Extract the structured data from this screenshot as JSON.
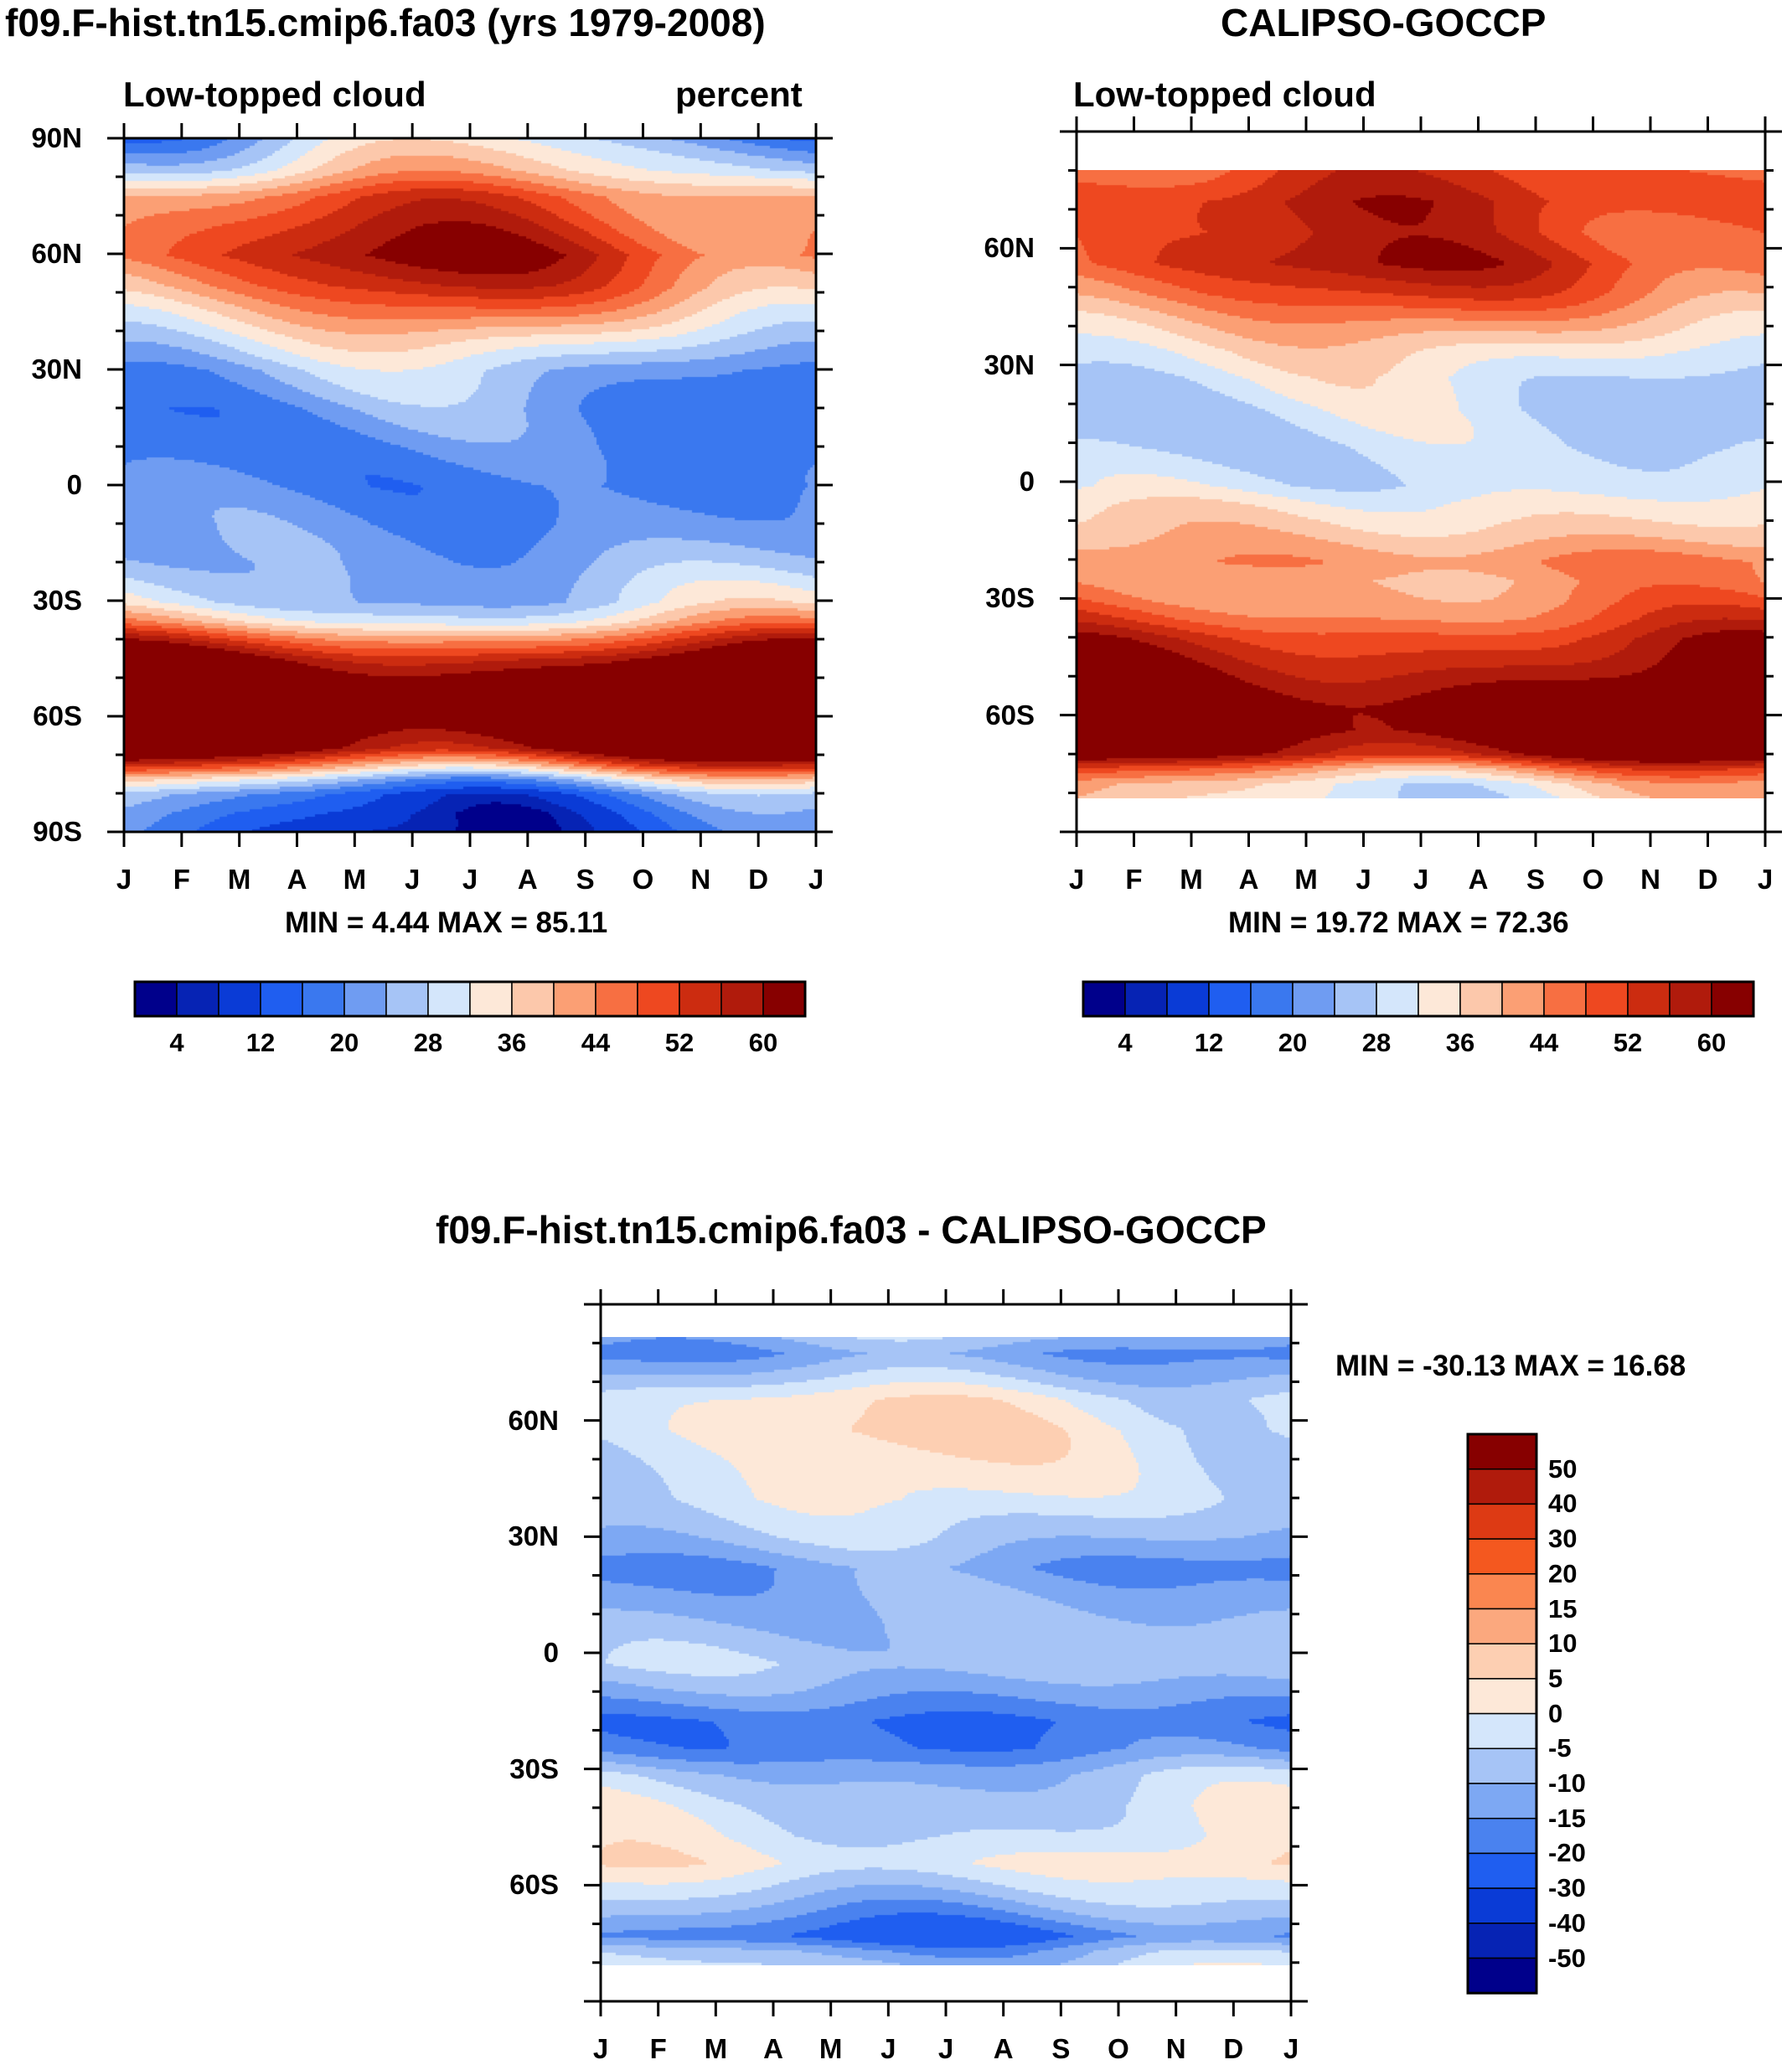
{
  "chart_data": [
    {
      "type": "contour",
      "title": "f09.F-hist.tn15.cmip6.fa03 (yrs 1979-2008)",
      "left_subtitle": "Low-topped cloud",
      "right_subtitle": "percent",
      "x_tick_labels": [
        "J",
        "F",
        "M",
        "A",
        "M",
        "J",
        "J",
        "A",
        "S",
        "O",
        "N",
        "D",
        "J"
      ],
      "y_tick_labels": [
        "90N",
        "60N",
        "30N",
        "0",
        "30S",
        "60S",
        "90S"
      ],
      "ylim": [
        -90,
        90
      ],
      "min_max_text": "MIN =   4.44 MAX =  85.11",
      "colorbar_labels": [
        "4",
        "12",
        "20",
        "28",
        "36",
        "44",
        "52",
        "60"
      ],
      "zonal_profile": [
        [
          -90,
          8
        ],
        [
          -85,
          10
        ],
        [
          -80,
          14
        ],
        [
          -76,
          26
        ],
        [
          -72,
          45
        ],
        [
          -68,
          62
        ],
        [
          -60,
          70
        ],
        [
          -52,
          68
        ],
        [
          -45,
          58
        ],
        [
          -40,
          46
        ],
        [
          -35,
          32
        ],
        [
          -30,
          24
        ],
        [
          -20,
          20
        ],
        [
          -10,
          17
        ],
        [
          0,
          15
        ],
        [
          10,
          15
        ],
        [
          20,
          16
        ],
        [
          30,
          20
        ],
        [
          38,
          28
        ],
        [
          45,
          36
        ],
        [
          52,
          44
        ],
        [
          60,
          50
        ],
        [
          68,
          46
        ],
        [
          75,
          42
        ],
        [
          82,
          30
        ],
        [
          90,
          22
        ]
      ]
    },
    {
      "type": "contour",
      "title": "CALIPSO-GOCCP",
      "left_subtitle": "Low-topped cloud",
      "x_tick_labels": [
        "J",
        "F",
        "M",
        "A",
        "M",
        "J",
        "J",
        "A",
        "S",
        "O",
        "N",
        "D",
        "J"
      ],
      "y_tick_labels": [
        "60N",
        "30N",
        "0",
        "30S",
        "60S"
      ],
      "ylim": [
        -90,
        90
      ],
      "data_lat_range": [
        -82,
        82
      ],
      "min_max_text": "MIN =  19.72 MAX =  72.36",
      "colorbar_labels": [
        "4",
        "12",
        "20",
        "28",
        "36",
        "44",
        "52",
        "60"
      ],
      "zonal_profile": [
        [
          -82,
          30
        ],
        [
          -78,
          32
        ],
        [
          -74,
          42
        ],
        [
          -70,
          58
        ],
        [
          -64,
          64
        ],
        [
          -58,
          63
        ],
        [
          -52,
          58
        ],
        [
          -46,
          54
        ],
        [
          -40,
          50
        ],
        [
          -35,
          44
        ],
        [
          -30,
          40
        ],
        [
          -25,
          38
        ],
        [
          -20,
          40
        ],
        [
          -12,
          34
        ],
        [
          -5,
          30
        ],
        [
          0,
          26
        ],
        [
          10,
          24
        ],
        [
          20,
          24
        ],
        [
          28,
          26
        ],
        [
          35,
          30
        ],
        [
          42,
          36
        ],
        [
          50,
          44
        ],
        [
          58,
          50
        ],
        [
          66,
          48
        ],
        [
          74,
          50
        ],
        [
          82,
          46
        ]
      ]
    },
    {
      "type": "contour",
      "title": "f09.F-hist.tn15.cmip6.fa03 - CALIPSO-GOCCP",
      "x_tick_labels": [
        "J",
        "F",
        "M",
        "A",
        "M",
        "J",
        "J",
        "A",
        "S",
        "O",
        "N",
        "D",
        "J"
      ],
      "y_tick_labels": [
        "60N",
        "30N",
        "0",
        "30S",
        "60S"
      ],
      "ylim": [
        -90,
        90
      ],
      "data_lat_range": [
        -82,
        82
      ],
      "min_max_text": "MIN = -30.13 MAX =  16.68",
      "colorbar_labels": [
        "50",
        "40",
        "30",
        "20",
        "15",
        "10",
        "5",
        "0",
        "-5",
        "-10",
        "-15",
        "-20",
        "-30",
        "-40",
        "-50"
      ],
      "zonal_profile": [
        [
          -82,
          -5
        ],
        [
          -78,
          -10
        ],
        [
          -74,
          -20
        ],
        [
          -68,
          -12
        ],
        [
          -62,
          -5
        ],
        [
          -55,
          2
        ],
        [
          -48,
          -2
        ],
        [
          -40,
          -4
        ],
        [
          -32,
          -8
        ],
        [
          -25,
          -18
        ],
        [
          -18,
          -20
        ],
        [
          -10,
          -12
        ],
        [
          -3,
          -6
        ],
        [
          5,
          -8
        ],
        [
          15,
          -12
        ],
        [
          22,
          -15
        ],
        [
          30,
          -8
        ],
        [
          40,
          -2
        ],
        [
          50,
          0
        ],
        [
          58,
          2
        ],
        [
          66,
          0
        ],
        [
          72,
          -8
        ],
        [
          78,
          -15
        ],
        [
          82,
          -10
        ]
      ]
    }
  ],
  "colors": {
    "seq": [
      "#00008b",
      "#0623b4",
      "#0a3bd6",
      "#1f5ef0",
      "#3a78ef",
      "#6f9cf2",
      "#a6c4f6",
      "#d4e6fb",
      "#fde8d8",
      "#fcc8ab",
      "#fb9f74",
      "#f76f42",
      "#ee4820",
      "#cc2c10",
      "#b01b0c",
      "#870000"
    ],
    "div": [
      "#870000",
      "#b01b0c",
      "#dd3a14",
      "#f4581f",
      "#fa8650",
      "#fba87e",
      "#fdcfb2",
      "#fde8d8",
      "#d4e6fb",
      "#a6c4f6",
      "#7da8f3",
      "#4a82ef",
      "#1f5ef0",
      "#0a3bd6",
      "#0623b4",
      "#00008b"
    ]
  }
}
